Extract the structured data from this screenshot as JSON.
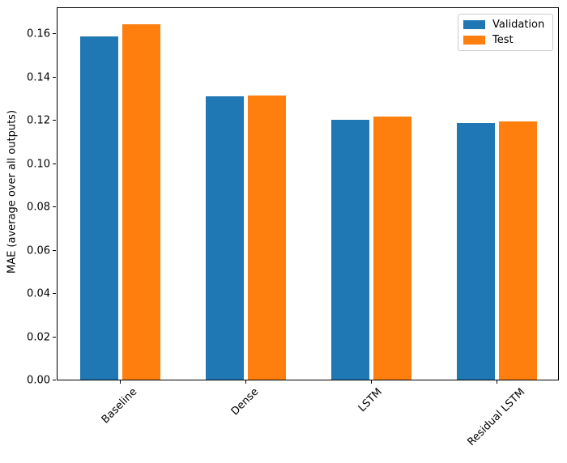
{
  "figure": {
    "background": "#ffffff",
    "axis_color": "#000000",
    "text_color": "#000000"
  },
  "chart_data": {
    "type": "bar",
    "title": "",
    "xlabel": "",
    "ylabel": "MAE (average over all outputs)",
    "categories": [
      "Baseline",
      "Dense",
      "LSTM",
      "Residual LSTM"
    ],
    "series": [
      {
        "name": "Validation",
        "color": "#1f77b4",
        "values": [
          0.1588,
          0.1309,
          0.1201,
          0.1186
        ]
      },
      {
        "name": "Test",
        "color": "#ff7f0e",
        "values": [
          0.1641,
          0.1312,
          0.1216,
          0.1194
        ]
      }
    ],
    "yticks": [
      0.0,
      0.02,
      0.04,
      0.06,
      0.08,
      0.1,
      0.12,
      0.14,
      0.16
    ],
    "ytick_labels": [
      "0.00",
      "0.02",
      "0.04",
      "0.06",
      "0.08",
      "0.10",
      "0.12",
      "0.14",
      "0.16"
    ],
    "ylim": [
      0,
      0.1725
    ],
    "xlim_units": [
      -0.5,
      3.5
    ],
    "grid": false,
    "x_tick_rotation_deg": 45,
    "bar_width_units": 0.303,
    "bar_offset_units": 0.17,
    "legend": {
      "position": "upper right"
    }
  }
}
